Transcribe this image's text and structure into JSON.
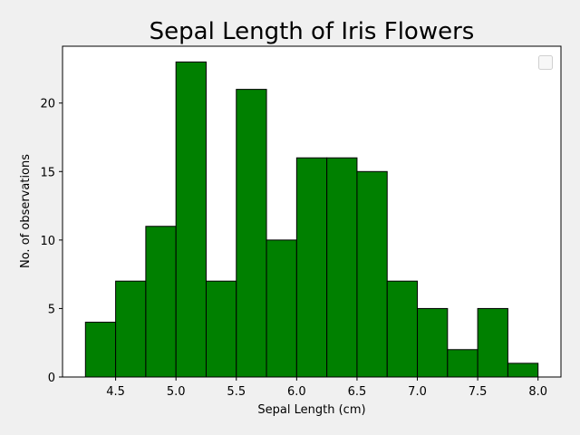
{
  "chart_data": {
    "type": "bar",
    "title": "Sepal Length of Iris Flowers",
    "xlabel": "Sepal Length (cm)",
    "ylabel": "No. of observations",
    "bin_edges": [
      4.25,
      4.5,
      4.75,
      5.0,
      5.25,
      5.5,
      5.75,
      6.0,
      6.25,
      6.5,
      6.75,
      7.0,
      7.25,
      7.5,
      7.75,
      8.0
    ],
    "values": [
      4,
      7,
      11,
      23,
      7,
      21,
      10,
      16,
      16,
      15,
      7,
      5,
      2,
      5,
      1
    ],
    "xlim": [
      4.06,
      8.19
    ],
    "ylim": [
      0,
      24.15
    ],
    "xticks": [
      "4.5",
      "5.0",
      "5.5",
      "6.0",
      "6.5",
      "7.0",
      "7.5",
      "8.0"
    ],
    "yticks": [
      "0",
      "5",
      "10",
      "15",
      "20"
    ],
    "bar_color": "#008000",
    "edge_color": "#000000",
    "background_color": "#f0f0f0",
    "plot_background": "#ffffff",
    "grid": false,
    "legend": "top-right, empty"
  }
}
